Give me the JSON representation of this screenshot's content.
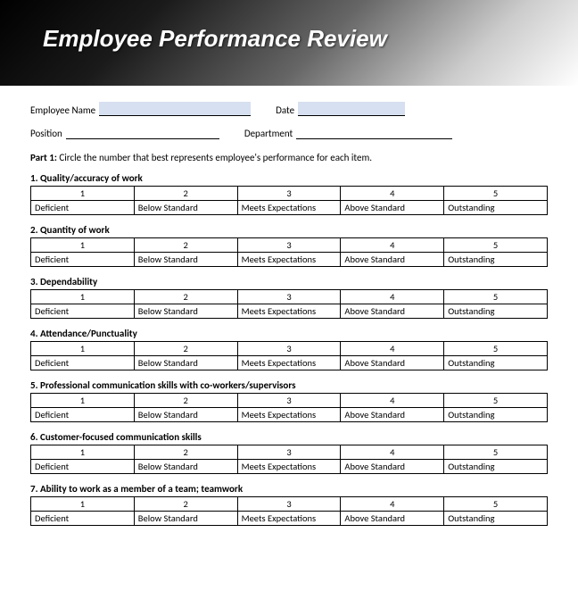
{
  "banner": {
    "title": "Employee Performance Review"
  },
  "info": {
    "name_label": "Employee Name",
    "date_label": "Date",
    "position_label": "Position",
    "department_label": "Department"
  },
  "instructions_prefix": "Part 1:",
  "instructions_text": " Circle the number that best represents employee's performance for each item.",
  "rating_numbers": [
    "1",
    "2",
    "3",
    "4",
    "5"
  ],
  "rating_labels": [
    "Deficient",
    "Below Standard",
    "Meets Expectations",
    "Above Standard",
    "Outstanding"
  ],
  "sections": [
    "1. Quality/accuracy of work",
    "2. Quantity of work",
    "3. Dependability",
    "4. Attendance/Punctuality",
    "5. Professional communication skills with co-workers/supervisors",
    "6. Customer-focused communication skills",
    "7. Ability to work as a member of a team; teamwork"
  ],
  "colors": {
    "highlight": "#d6e0f0",
    "border": "#000000",
    "text": "#000000",
    "banner_text": "#ffffff"
  }
}
